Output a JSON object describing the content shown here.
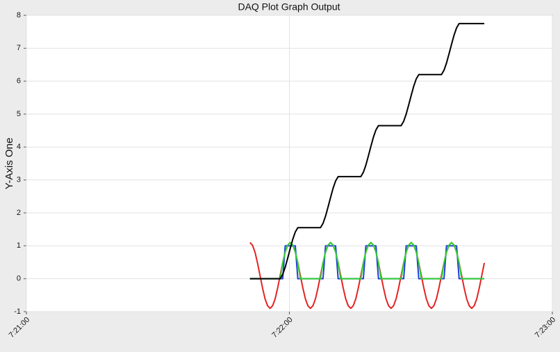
{
  "chart_data": {
    "type": "line",
    "title": "DAQ Plot Graph Output",
    "y_label": "Y-Axis One",
    "xlim": [
      0,
      120
    ],
    "xticks": [
      {
        "value": 0,
        "label": "7:21:00"
      },
      {
        "value": 60,
        "label": "7:22:00"
      },
      {
        "value": 120,
        "label": "7:23:00"
      }
    ],
    "ylim": [
      -1,
      8
    ],
    "yticks": [
      -1,
      0,
      1,
      2,
      3,
      4,
      5,
      6,
      7,
      8
    ],
    "grid": true,
    "x": [
      51,
      51.575,
      52.15,
      52.725,
      53.3,
      53.875,
      54.45,
      55.025,
      55.6,
      56.175,
      56.75,
      57.325,
      57.9,
      58.475,
      59.05,
      59.625,
      60.2,
      60.775,
      61.35,
      61.925,
      62.5,
      63.075,
      63.65,
      64.225,
      64.8,
      65.375,
      65.95,
      66.525,
      67.1,
      67.675,
      68.25,
      68.825,
      69.4,
      69.975,
      70.55,
      71.125,
      71.7,
      72.275,
      72.85,
      73.425,
      74,
      74.575,
      75.15,
      75.725,
      76.3,
      76.875,
      77.45,
      78.025,
      78.6,
      79.175,
      79.75,
      80.325,
      80.9,
      81.475,
      82.05,
      82.625,
      83.2,
      83.775,
      84.35,
      84.925,
      85.5,
      86.075,
      86.65,
      87.225,
      87.8,
      88.375,
      88.95,
      89.525,
      90.1,
      90.675,
      91.25,
      91.825,
      92.4,
      92.975,
      93.55,
      94.125,
      94.7,
      95.275,
      95.85,
      96.425,
      97,
      97.575,
      98.15,
      98.725,
      99.3,
      99.875,
      100.45,
      101.025,
      101.6,
      102.175,
      102.75,
      103.325,
      103.9,
      104.475
    ],
    "series": [
      {
        "color": "#e52222",
        "values": [
          1.1,
          1.02,
          0.81,
          0.48,
          0.1,
          -0.28,
          -0.61,
          -0.82,
          -0.9,
          -0.82,
          -0.61,
          -0.28,
          0.1,
          0.48,
          0.81,
          1.02,
          1.1,
          1.02,
          0.81,
          0.48,
          0.1,
          -0.28,
          -0.61,
          -0.82,
          -0.9,
          -0.82,
          -0.61,
          -0.28,
          0.1,
          0.48,
          0.81,
          1.02,
          1.1,
          1.02,
          0.81,
          0.48,
          0.1,
          -0.28,
          -0.61,
          -0.82,
          -0.9,
          -0.82,
          -0.61,
          -0.28,
          0.1,
          0.48,
          0.81,
          1.02,
          1.1,
          1.02,
          0.81,
          0.48,
          0.1,
          -0.28,
          -0.61,
          -0.82,
          -0.9,
          -0.82,
          -0.61,
          -0.28,
          0.1,
          0.48,
          0.81,
          1.02,
          1.1,
          1.02,
          0.81,
          0.48,
          0.1,
          -0.28,
          -0.61,
          -0.82,
          -0.9,
          -0.82,
          -0.61,
          -0.28,
          0.1,
          0.48,
          0.81,
          1.02,
          1.1,
          1.02,
          0.81,
          0.48,
          0.1,
          -0.28,
          -0.61,
          -0.82,
          -0.9,
          -0.82,
          -0.61,
          -0.28,
          0.1,
          0.48
        ]
      },
      {
        "color": "#1f3fd6",
        "values": [
          0,
          0,
          0,
          0,
          0,
          0,
          0,
          0,
          0,
          0,
          0,
          0,
          0,
          0,
          1,
          1,
          1,
          1,
          1,
          0,
          0,
          0,
          0,
          0,
          0,
          0,
          0,
          0,
          0,
          0,
          1,
          1,
          1,
          1,
          1,
          0,
          0,
          0,
          0,
          0,
          0,
          0,
          0,
          0,
          0,
          0,
          1,
          1,
          1,
          1,
          1,
          0,
          0,
          0,
          0,
          0,
          0,
          0,
          0,
          0,
          0,
          0,
          1,
          1,
          1,
          1,
          1,
          0,
          0,
          0,
          0,
          0,
          0,
          0,
          0,
          0,
          0,
          0,
          1,
          1,
          1,
          1,
          1,
          0,
          0,
          0,
          0,
          0,
          0,
          0,
          0,
          0,
          0,
          0
        ]
      },
      {
        "color": "#2fd02f",
        "values": [
          0,
          0,
          0,
          0,
          0,
          0,
          0,
          0,
          0,
          0,
          0,
          0,
          0,
          0.48,
          0.81,
          1.02,
          1.1,
          1.02,
          0.81,
          0.48,
          0,
          0,
          0,
          0,
          0,
          0,
          0,
          0,
          0,
          0.48,
          0.81,
          1.02,
          1.1,
          1.02,
          0.81,
          0.48,
          0,
          0,
          0,
          0,
          0,
          0,
          0,
          0,
          0,
          0.48,
          0.81,
          1.02,
          1.1,
          1.02,
          0.81,
          0.48,
          0,
          0,
          0,
          0,
          0,
          0,
          0,
          0,
          0,
          0.48,
          0.81,
          1.02,
          1.1,
          1.02,
          0.81,
          0.48,
          0,
          0,
          0,
          0,
          0,
          0,
          0,
          0,
          0,
          0.48,
          0.81,
          1.02,
          1.1,
          1.02,
          0.81,
          0.48,
          0,
          0,
          0,
          0,
          0,
          0,
          0,
          0,
          0,
          0
        ]
      },
      {
        "color": "#000000",
        "values": [
          0,
          0,
          0,
          0,
          0,
          0,
          0,
          0,
          0,
          0,
          0,
          0,
          0,
          0.13,
          0.35,
          0.63,
          0.92,
          1.2,
          1.42,
          1.55,
          1.55,
          1.55,
          1.55,
          1.55,
          1.55,
          1.55,
          1.55,
          1.55,
          1.55,
          1.68,
          1.9,
          2.18,
          2.47,
          2.75,
          2.97,
          3.1,
          3.1,
          3.1,
          3.1,
          3.1,
          3.1,
          3.1,
          3.1,
          3.1,
          3.1,
          3.23,
          3.45,
          3.73,
          4.02,
          4.3,
          4.52,
          4.65,
          4.65,
          4.65,
          4.65,
          4.65,
          4.65,
          4.65,
          4.65,
          4.65,
          4.65,
          4.78,
          5,
          5.28,
          5.57,
          5.85,
          6.07,
          6.2,
          6.2,
          6.2,
          6.2,
          6.2,
          6.2,
          6.2,
          6.2,
          6.2,
          6.2,
          6.33,
          6.55,
          6.83,
          7.12,
          7.4,
          7.62,
          7.75,
          7.75,
          7.75,
          7.75,
          7.75,
          7.75,
          7.75,
          7.75,
          7.75,
          7.75,
          7.75
        ]
      }
    ]
  }
}
